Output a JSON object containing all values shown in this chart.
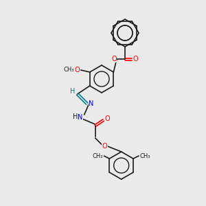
{
  "background_color": "#ebebeb",
  "bond_color": "#1a1a1a",
  "oxygen_color": "#ff0000",
  "nitrogen_color": "#0000cc",
  "imine_carbon_color": "#008080",
  "carbon_color": "#1a1a1a",
  "figsize": [
    3.0,
    3.0
  ],
  "dpi": 100,
  "ring_r": 20,
  "lw": 1.2,
  "label_fs": 7.0,
  "methyl_fs": 6.0,
  "methoxy_label": "O",
  "methoxy_text": "CH₃",
  "ester_o_label": "O",
  "carbonyl_o_label": "O",
  "n1_label": "N",
  "n2_label": "N",
  "hydrazide_o_label": "O",
  "ether_o_label": "O"
}
